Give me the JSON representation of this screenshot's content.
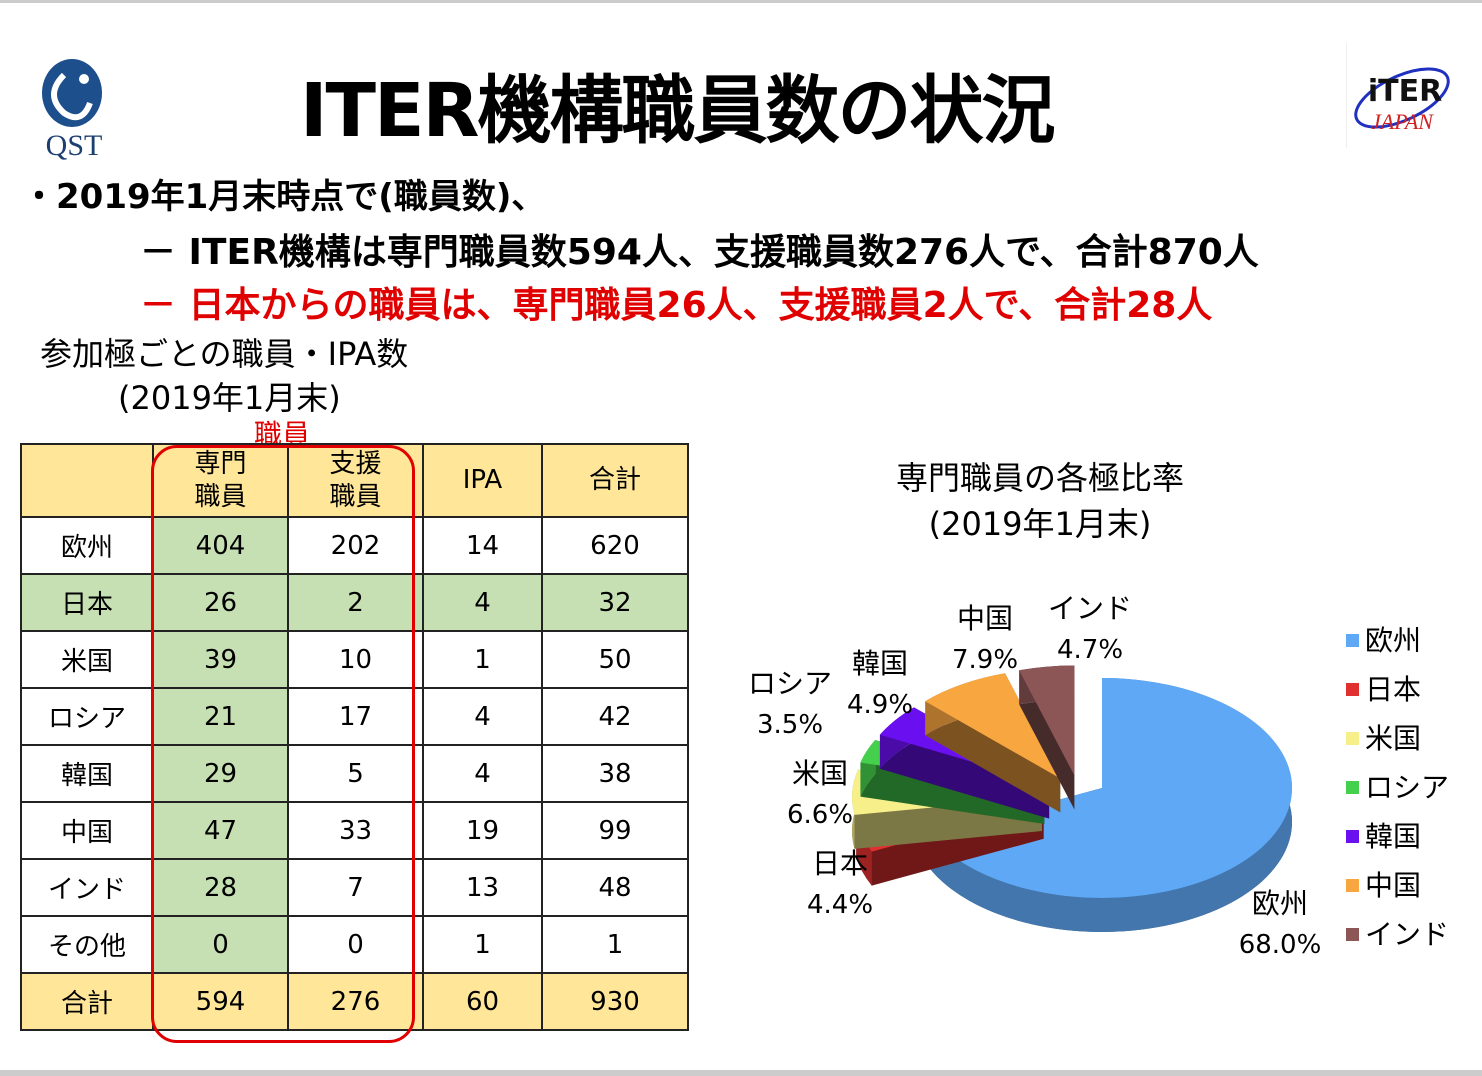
{
  "header": {
    "title": "ITER機構職員数の状況",
    "logo_left": "QST",
    "logo_right": "ITER JAPAN"
  },
  "bullets": {
    "line1": "・2019年1月末時点で(職員数)、",
    "line2": "－ ITER機構は専門職員数594人、支援職員数276人で、合計870人",
    "line3": "－ 日本からの職員は、専門職員26人、支援職員2人で、合計28人"
  },
  "table_title": {
    "line1": "参加極ごとの職員・IPA数",
    "line2": "(2019年1月末)",
    "group_label": "職員"
  },
  "table": {
    "headers": [
      "",
      "専門\n職員",
      "支援\n職員",
      "IPA",
      "合計"
    ],
    "rows": [
      [
        "欧州",
        "404",
        "202",
        "14",
        "620"
      ],
      [
        "日本",
        "26",
        "2",
        "4",
        "32"
      ],
      [
        "米国",
        "39",
        "10",
        "1",
        "50"
      ],
      [
        "ロシア",
        "21",
        "17",
        "4",
        "42"
      ],
      [
        "韓国",
        "29",
        "5",
        "4",
        "38"
      ],
      [
        "中国",
        "47",
        "33",
        "19",
        "99"
      ],
      [
        "インド",
        "28",
        "7",
        "13",
        "48"
      ],
      [
        "その他",
        "0",
        "0",
        "1",
        "1"
      ],
      [
        "合計",
        "594",
        "276",
        "60",
        "930"
      ]
    ]
  },
  "colors": {
    "highlight": "#e00000",
    "yellow": "#ffe699",
    "green": "#c6e0b4"
  },
  "chart_data": {
    "type": "pie",
    "title": "専門職員の各極比率",
    "subtitle": "(2019年1月末)",
    "legend_position": "right",
    "categories": [
      "欧州",
      "日本",
      "米国",
      "ロシア",
      "韓国",
      "中国",
      "インド"
    ],
    "values": [
      68.0,
      4.4,
      6.6,
      3.5,
      4.9,
      7.9,
      4.7
    ],
    "labels": [
      "68.0%",
      "4.4%",
      "6.6%",
      "3.5%",
      "4.9%",
      "7.9%",
      "4.7%"
    ],
    "colors": [
      "#5fa8f5",
      "#e03030",
      "#f7ef8a",
      "#44d04c",
      "#6a10f0",
      "#f8a640",
      "#8c5556"
    ]
  }
}
